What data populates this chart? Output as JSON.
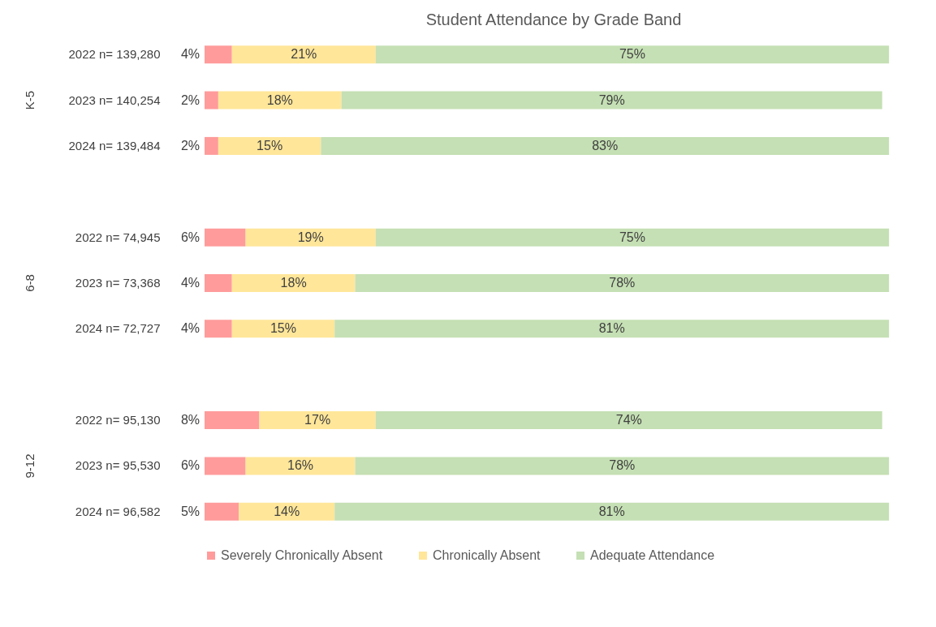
{
  "chart_data": {
    "type": "bar",
    "orientation": "horizontal",
    "stacked": true,
    "title": "Student Attendance by Grade Band",
    "categories": [
      "2022 n= 139,280",
      "2023 n= 140,254",
      "2024 n= 139,484",
      null,
      "2022 n= 74,945",
      "2023 n= 73,368",
      "2024 n= 72,727",
      null,
      "2022 n= 95,130",
      "2023 n= 95,530",
      "2024 n= 96,582"
    ],
    "series": [
      {
        "name": "Severely Chronically Absent",
        "color": "#ff9b9b",
        "values": [
          4,
          2,
          2,
          null,
          6,
          4,
          4,
          null,
          8,
          6,
          5
        ],
        "value_labels": [
          "4%",
          "2%",
          "2%",
          null,
          "6%",
          "4%",
          "4%",
          null,
          "8%",
          "6%",
          "5%"
        ]
      },
      {
        "name": "Chronically Absent",
        "color": "#ffe699",
        "values": [
          21,
          18,
          15,
          null,
          19,
          18,
          15,
          null,
          17,
          16,
          14
        ],
        "value_labels": [
          "21%",
          "18%",
          "15%",
          null,
          "19%",
          "18%",
          "15%",
          null,
          "17%",
          "16%",
          "14%"
        ]
      },
      {
        "name": "Adequate Attendance",
        "color": "#c5e0b4",
        "values": [
          75,
          79,
          83,
          null,
          75,
          78,
          81,
          null,
          74,
          78,
          81
        ],
        "value_labels": [
          "75%",
          "79%",
          "83%",
          null,
          "75%",
          "78%",
          "81%",
          null,
          "74%",
          "78%",
          "81%"
        ]
      }
    ],
    "annotations": [
      "K-5",
      "6-8",
      "9-12"
    ],
    "legend": "bottom",
    "grid": false
  }
}
